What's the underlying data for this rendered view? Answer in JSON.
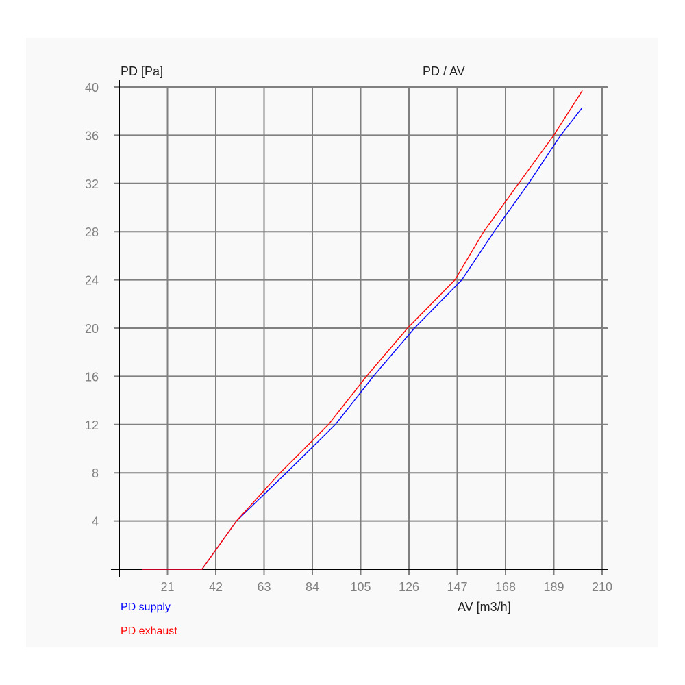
{
  "chart_data": {
    "type": "line",
    "title": "PD / AV",
    "xlabel": "AV [m3/h]",
    "ylabel": "PD [Pa]",
    "xlim": [
      0,
      210
    ],
    "ylim": [
      0,
      40
    ],
    "xticks": [
      21,
      42,
      63,
      84,
      105,
      126,
      147,
      168,
      189,
      210
    ],
    "yticks": [
      4,
      8,
      12,
      16,
      20,
      24,
      28,
      32,
      36,
      40
    ],
    "grid": true,
    "legend": "bottom-left",
    "series": [
      {
        "name": "PD supply",
        "color": "#0000ff",
        "points": [
          [
            10,
            0
          ],
          [
            36,
            0
          ],
          [
            51,
            4
          ],
          [
            72.7,
            8
          ],
          [
            94,
            12
          ],
          [
            110.5,
            16
          ],
          [
            128.4,
            20
          ],
          [
            149,
            24
          ],
          [
            163,
            28
          ],
          [
            178,
            32
          ],
          [
            192,
            36
          ],
          [
            201.4,
            38.3
          ]
        ]
      },
      {
        "name": "PD exhaust",
        "color": "#ff0000",
        "points": [
          [
            10,
            0
          ],
          [
            36,
            0
          ],
          [
            51,
            4
          ],
          [
            70,
            8
          ],
          [
            91,
            12
          ],
          [
            107.5,
            16
          ],
          [
            125.4,
            20
          ],
          [
            146,
            24
          ],
          [
            158.5,
            28
          ],
          [
            173.7,
            32
          ],
          [
            189,
            36
          ],
          [
            201.4,
            39.7
          ]
        ]
      }
    ]
  }
}
